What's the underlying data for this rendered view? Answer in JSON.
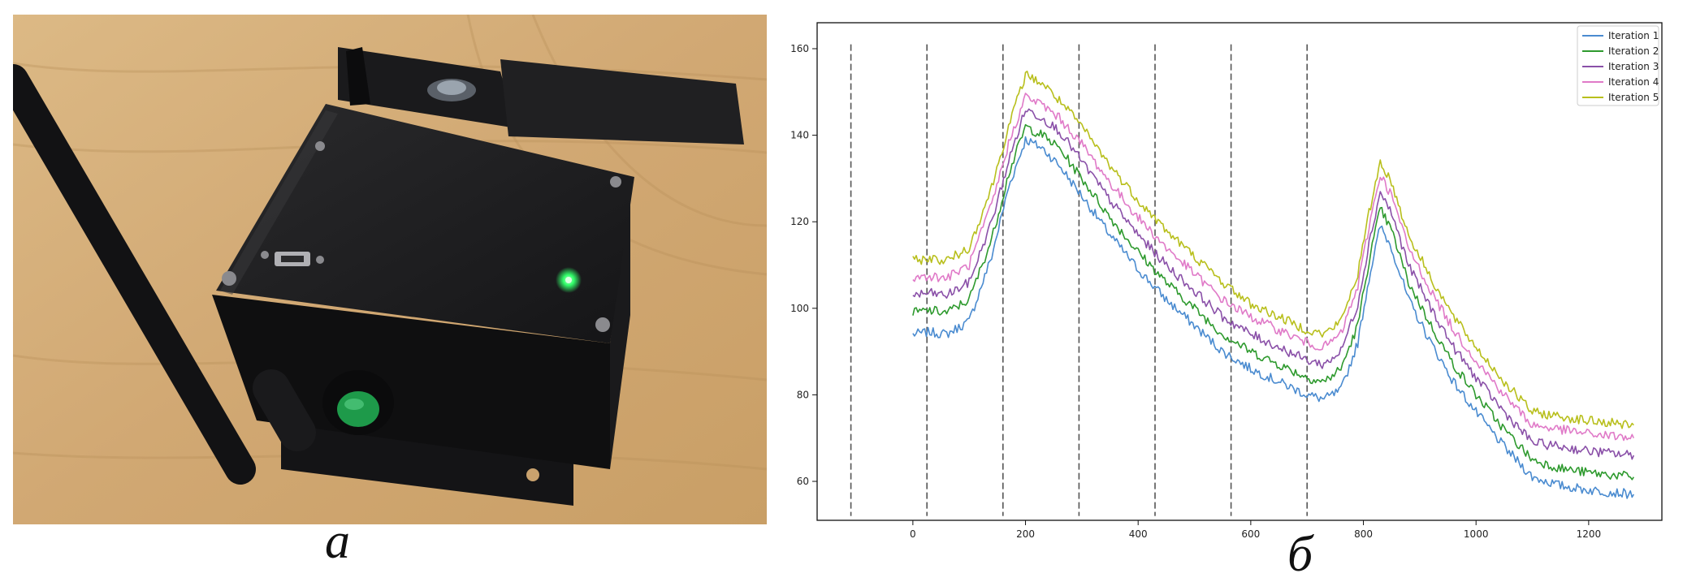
{
  "captions": {
    "photo": "а",
    "chart": "б"
  },
  "photo": {
    "description_icon": "device-photo",
    "colors": {
      "wood": "#d6b27e",
      "enclosure": "#1c1c1e",
      "led": "#32ff6a",
      "button": "#1e9a4a"
    }
  },
  "chart_data": {
    "type": "line",
    "xlim": [
      -170,
      1330
    ],
    "ylim": [
      51,
      166
    ],
    "xticks": [
      0,
      200,
      400,
      600,
      800,
      1000,
      1200
    ],
    "xtick_labels": [
      "0",
      "200",
      "400",
      "600",
      "800",
      "1000",
      "1200"
    ],
    "yticks": [
      60,
      80,
      100,
      120,
      140,
      160
    ],
    "ytick_labels": [
      "60",
      "80",
      "100",
      "120",
      "140",
      "160"
    ],
    "grid": false,
    "legend_position": "top-right",
    "vlines_x": [
      -110,
      25,
      160,
      295,
      430,
      565,
      700
    ],
    "vlines_y": [
      52,
      161
    ],
    "x": [
      0,
      30,
      60,
      100,
      140,
      170,
      200,
      230,
      260,
      300,
      350,
      400,
      450,
      500,
      550,
      600,
      650,
      700,
      730,
      760,
      790,
      810,
      830,
      850,
      880,
      920,
      960,
      1000,
      1050,
      1100,
      1150,
      1200,
      1280
    ],
    "series": [
      {
        "name": "Iteration 1",
        "color": "#4a8bd0",
        "values": [
          94,
          94.5,
          94,
          97,
          112,
          128,
          139,
          137,
          133,
          126,
          117,
          109,
          102,
          96,
          90,
          86,
          83,
          80,
          79,
          81,
          92,
          107,
          119,
          114,
          102,
          92,
          83,
          76,
          68,
          61,
          59,
          58,
          57
        ]
      },
      {
        "name": "Iteration 2",
        "color": "#2e9a2e",
        "values": [
          99,
          99.5,
          99,
          102,
          116,
          131,
          142,
          140,
          137,
          130,
          121,
          113,
          106,
          100,
          94,
          90,
          87,
          84,
          83,
          86,
          96,
          111,
          123,
          118,
          106,
          96,
          87,
          80,
          72,
          65,
          63,
          62,
          61
        ]
      },
      {
        "name": "Iteration 3",
        "color": "#8a50a8",
        "values": [
          103,
          103.5,
          103,
          106,
          120,
          134,
          146,
          144,
          141,
          134,
          125,
          117,
          110,
          104,
          98,
          94,
          91,
          88,
          87,
          90,
          101,
          115,
          127,
          122,
          110,
          100,
          91,
          84,
          76,
          69,
          68,
          67,
          66
        ]
      },
      {
        "name": "Iteration 4",
        "color": "#e07ac8",
        "values": [
          107,
          107.5,
          107,
          110,
          124,
          138,
          149,
          147,
          144,
          138,
          129,
          121,
          114,
          108,
          102,
          98,
          95,
          92,
          91,
          94,
          105,
          119,
          131,
          126,
          114,
          104,
          95,
          88,
          80,
          73,
          72,
          71,
          70
        ]
      },
      {
        "name": "Iteration 5",
        "color": "#b8bf1c",
        "values": [
          111,
          111.5,
          111,
          114,
          128,
          142,
          154,
          152,
          148,
          142,
          133,
          125,
          118,
          112,
          106,
          101,
          98,
          95,
          94,
          97,
          108,
          122,
          134,
          129,
          117,
          107,
          98,
          91,
          83,
          76,
          75,
          74,
          73
        ]
      }
    ]
  }
}
